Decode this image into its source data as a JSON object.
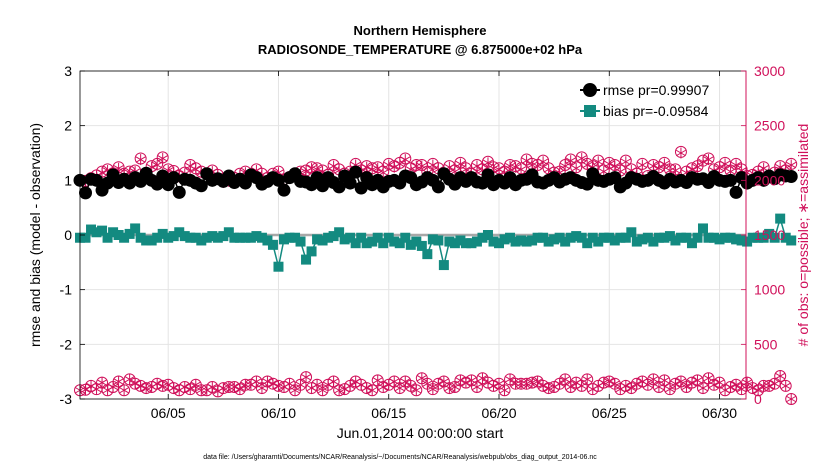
{
  "chart_data": {
    "type": "line",
    "title": "Northern Hemisphere",
    "subtitle": "RADIOSONDE_TEMPERATURE @ 6.875000e+02 hPa",
    "xlabel": "Jun.01,2014 00:00:00 start",
    "ylabel_left": "rmse and bias (model - observation)",
    "ylabel_right": "# of obs: o=possible; ∗=assimilated",
    "footnote": "data file: /Users/gharamti/Documents/NCAR/Reanalysis/~/Documents/NCAR/Reanalysis/webpub/obs_diag_output_2014-06.nc",
    "xlim": [
      1.0,
      31.2
    ],
    "ylim_left": [
      -3,
      3
    ],
    "ylim_right": [
      0,
      3000
    ],
    "x_ticks": [
      5,
      10,
      15,
      20,
      25,
      30
    ],
    "x_tick_labels": [
      "06/05",
      "06/10",
      "06/15",
      "06/20",
      "06/25",
      "06/30"
    ],
    "y_left_ticks": [
      -3,
      -2,
      -1,
      0,
      1,
      2,
      3
    ],
    "y_right_ticks": [
      0,
      500,
      1000,
      1500,
      2000,
      2500,
      3000
    ],
    "colors": {
      "rmse": "#000000",
      "bias": "#138a80",
      "obs": "#d0105a",
      "zero_line": "#a8a8a8",
      "grid": "#e4e4e4"
    },
    "legend": {
      "position": "top-right",
      "entries": [
        "rmse pr=0.99907",
        "bias pr=-0.09584"
      ]
    },
    "series": [
      {
        "name": "rmse",
        "axis": "left",
        "values": [
          1.0,
          0.77,
          1.02,
          1.0,
          0.82,
          0.95,
          1.1,
          0.96,
          1.02,
          0.95,
          1.05,
          0.98,
          1.13,
          1.0,
          0.93,
          1.08,
          0.92,
          1.05,
          0.78,
          1.02,
          1.0,
          0.95,
          0.9,
          1.12,
          1.0,
          1.03,
          0.98,
          1.08,
          0.96,
          1.02,
          0.95,
          1.1,
          1.05,
          0.93,
          0.98,
          1.05,
          1.0,
          0.82,
          1.05,
          1.12,
          0.98,
          0.97,
          0.92,
          1.05,
          0.9,
          1.05,
          0.96,
          0.88,
          1.08,
          0.95,
          1.15,
          0.86,
          1.05,
          0.92,
          1.0,
          0.88,
          0.98,
          1.0,
          0.95,
          1.08,
          1.05,
          0.92,
          0.97,
          1.05,
          1.0,
          0.88,
          1.12,
          1.02,
          0.93,
          1.05,
          0.98,
          1.05,
          0.97,
          0.95,
          1.1,
          0.92,
          1.0,
          0.95,
          1.05,
          0.92,
          1.0,
          1.02,
          1.1,
          0.97,
          0.95,
          1.0,
          1.05,
          0.97,
          1.02,
          1.05,
          1.0,
          0.96,
          0.93,
          1.12,
          1.0,
          0.98,
          1.02,
          1.05,
          0.88,
          0.95,
          1.05,
          1.02,
          0.98,
          1.0,
          1.07,
          1.0,
          0.95,
          1.02,
          0.97,
          1.0,
          0.96,
          1.05,
          1.02,
          1.03,
          0.96,
          1.07,
          1.0,
          0.98,
          1.0,
          0.78,
          1.05,
          0.95,
          1.0,
          1.05,
          1.0,
          1.08,
          1.03,
          1.1,
          1.08,
          1.07
        ]
      },
      {
        "name": "bias",
        "axis": "left",
        "values": [
          -0.05,
          -0.05,
          0.1,
          0.05,
          0.08,
          -0.05,
          0.05,
          0.0,
          -0.05,
          0.02,
          0.12,
          -0.05,
          -0.1,
          -0.1,
          -0.05,
          0.02,
          -0.05,
          -0.02,
          0.05,
          -0.02,
          -0.05,
          -0.05,
          -0.1,
          -0.05,
          -0.02,
          -0.05,
          -0.02,
          0.05,
          -0.05,
          -0.05,
          -0.05,
          -0.05,
          -0.02,
          -0.05,
          -0.1,
          -0.18,
          -0.58,
          -0.08,
          -0.05,
          -0.05,
          -0.12,
          -0.45,
          -0.3,
          -0.08,
          -0.1,
          -0.05,
          -0.02,
          0.05,
          -0.08,
          -0.05,
          -0.15,
          -0.05,
          -0.15,
          -0.12,
          -0.05,
          -0.15,
          -0.05,
          -0.12,
          -0.15,
          -0.05,
          -0.18,
          -0.12,
          -0.2,
          -0.35,
          -0.08,
          -0.1,
          -0.55,
          -0.12,
          -0.15,
          -0.1,
          -0.15,
          -0.15,
          -0.12,
          -0.05,
          0.0,
          -0.12,
          -0.15,
          -0.08,
          -0.05,
          -0.12,
          -0.1,
          -0.12,
          -0.1,
          -0.05,
          -0.05,
          -0.12,
          -0.08,
          -0.05,
          -0.12,
          -0.05,
          -0.02,
          -0.05,
          -0.15,
          -0.05,
          -0.12,
          -0.05,
          -0.05,
          -0.1,
          -0.05,
          -0.05,
          0.05,
          -0.12,
          -0.08,
          -0.05,
          -0.12,
          -0.05,
          -0.05,
          -0.02,
          -0.1,
          -0.05,
          -0.05,
          -0.15,
          -0.05,
          0.12,
          -0.05,
          -0.05,
          -0.08,
          -0.05,
          -0.05,
          -0.08,
          -0.1,
          -0.12,
          -0.05,
          -0.05,
          -0.05,
          0.02,
          -0.05,
          0.3,
          -0.05,
          -0.1
        ]
      },
      {
        "name": "possible",
        "axis": "right",
        "values": [
          2000,
          1995,
          2020,
          2045,
          2080,
          2100,
          2065,
          2120,
          2060,
          2080,
          2090,
          2200,
          2040,
          2130,
          2150,
          2210,
          2100,
          2085,
          2040,
          2070,
          2140,
          2110,
          2080,
          2060,
          2090,
          2050,
          1990,
          2000,
          2020,
          2060,
          2080,
          2040,
          2100,
          2060,
          2020,
          2060,
          2080,
          2010,
          2030,
          2050,
          2080,
          2090,
          2120,
          2110,
          2090,
          2050,
          2140,
          2100,
          2060,
          2080,
          2150,
          2090,
          2130,
          2110,
          2120,
          2080,
          2150,
          2130,
          2160,
          2200,
          2110,
          2140,
          2140,
          2080,
          2150,
          2110,
          2060,
          2130,
          2090,
          2160,
          2110,
          2060,
          2140,
          2100,
          2170,
          2120,
          2110,
          2080,
          2140,
          2130,
          2110,
          2190,
          2150,
          2140,
          2180,
          2110,
          2070,
          2080,
          2140,
          2190,
          2120,
          2210,
          2150,
          2130,
          2180,
          2090,
          2160,
          2140,
          2090,
          2180,
          2100,
          2060,
          2150,
          2040,
          2140,
          2120,
          2160,
          2100,
          2100,
          2260,
          2080,
          2110,
          2130,
          2180,
          2200,
          2100,
          2120,
          2160,
          2090,
          2150,
          2100,
          2040,
          2050,
          2080,
          2120,
          2030,
          2070,
          2130,
          2090,
          2150
        ]
      },
      {
        "name": "assimilated",
        "axis": "right",
        "values": [
          1995,
          1985,
          2010,
          2035,
          2070,
          2090,
          2055,
          2110,
          2050,
          2070,
          2080,
          2190,
          2030,
          2120,
          2140,
          2200,
          2090,
          2075,
          2030,
          2060,
          2130,
          2100,
          2070,
          2050,
          2080,
          2040,
          1980,
          1990,
          2010,
          2050,
          2070,
          2030,
          2090,
          2050,
          2010,
          2050,
          2070,
          2000,
          2020,
          2040,
          2070,
          2080,
          2110,
          2100,
          2080,
          2040,
          2130,
          2090,
          2050,
          2070,
          2140,
          2080,
          2120,
          2100,
          2110,
          2070,
          2140,
          2120,
          2150,
          2190,
          2100,
          2130,
          2130,
          2070,
          2140,
          2100,
          2050,
          2120,
          2080,
          2150,
          2100,
          2050,
          2130,
          2090,
          2160,
          2110,
          2100,
          2070,
          2130,
          2120,
          2100,
          2180,
          2140,
          2130,
          2170,
          2100,
          2060,
          2070,
          2130,
          2180,
          2110,
          2200,
          2140,
          2120,
          2170,
          2080,
          2150,
          2130,
          2080,
          2170,
          2090,
          2050,
          2140,
          2030,
          2130,
          2110,
          2150,
          2090,
          2090,
          2250,
          2070,
          2100,
          2120,
          2170,
          2190,
          2090,
          2110,
          2150,
          2080,
          2140,
          2090,
          2030,
          2040,
          2070,
          2110,
          2020,
          2060,
          2120,
          2080,
          2140
        ]
      },
      {
        "name": "possible_low",
        "axis": "right",
        "values": [
          80,
          85,
          120,
          90,
          150,
          80,
          110,
          160,
          80,
          180,
          140,
          120,
          100,
          110,
          140,
          120,
          130,
          100,
          80,
          110,
          90,
          130,
          80,
          80,
          110,
          70,
          100,
          110,
          110,
          90,
          130,
          130,
          160,
          100,
          160,
          140,
          120,
          110,
          140,
          80,
          130,
          200,
          100,
          130,
          80,
          130,
          160,
          80,
          90,
          120,
          160,
          130,
          100,
          80,
          170,
          110,
          130,
          160,
          100,
          160,
          120,
          80,
          190,
          140,
          90,
          140,
          160,
          100,
          110,
          170,
          150,
          170,
          110,
          190,
          150,
          120,
          140,
          80,
          180,
          140,
          140,
          140,
          150,
          160,
          120,
          100,
          110,
          140,
          180,
          110,
          150,
          120,
          180,
          90,
          120,
          150,
          160,
          140,
          90,
          120,
          100,
          140,
          160,
          130,
          180,
          110,
          170,
          90,
          140,
          160,
          110,
          150,
          170,
          100,
          190,
          130,
          150,
          80,
          110,
          130,
          90,
          150,
          100,
          80,
          120,
          120,
          140,
          210,
          120,
          0
        ]
      },
      {
        "name": "assimilated_low",
        "axis": "right",
        "values": [
          80,
          85,
          120,
          90,
          150,
          80,
          110,
          160,
          80,
          180,
          140,
          120,
          100,
          110,
          140,
          120,
          130,
          100,
          80,
          110,
          90,
          130,
          80,
          80,
          110,
          70,
          100,
          110,
          110,
          90,
          130,
          130,
          160,
          100,
          160,
          140,
          120,
          110,
          140,
          80,
          130,
          200,
          100,
          130,
          80,
          130,
          160,
          80,
          90,
          120,
          160,
          130,
          100,
          80,
          170,
          110,
          130,
          160,
          100,
          160,
          120,
          80,
          190,
          140,
          90,
          140,
          160,
          100,
          110,
          170,
          150,
          170,
          110,
          190,
          150,
          120,
          140,
          80,
          180,
          140,
          140,
          140,
          150,
          160,
          120,
          100,
          110,
          140,
          180,
          110,
          150,
          120,
          180,
          90,
          120,
          150,
          160,
          140,
          90,
          120,
          100,
          140,
          160,
          130,
          180,
          110,
          170,
          90,
          140,
          160,
          110,
          150,
          170,
          100,
          190,
          130,
          150,
          80,
          110,
          130,
          90,
          150,
          100,
          80,
          120,
          120,
          140,
          210,
          120,
          0
        ]
      }
    ]
  }
}
